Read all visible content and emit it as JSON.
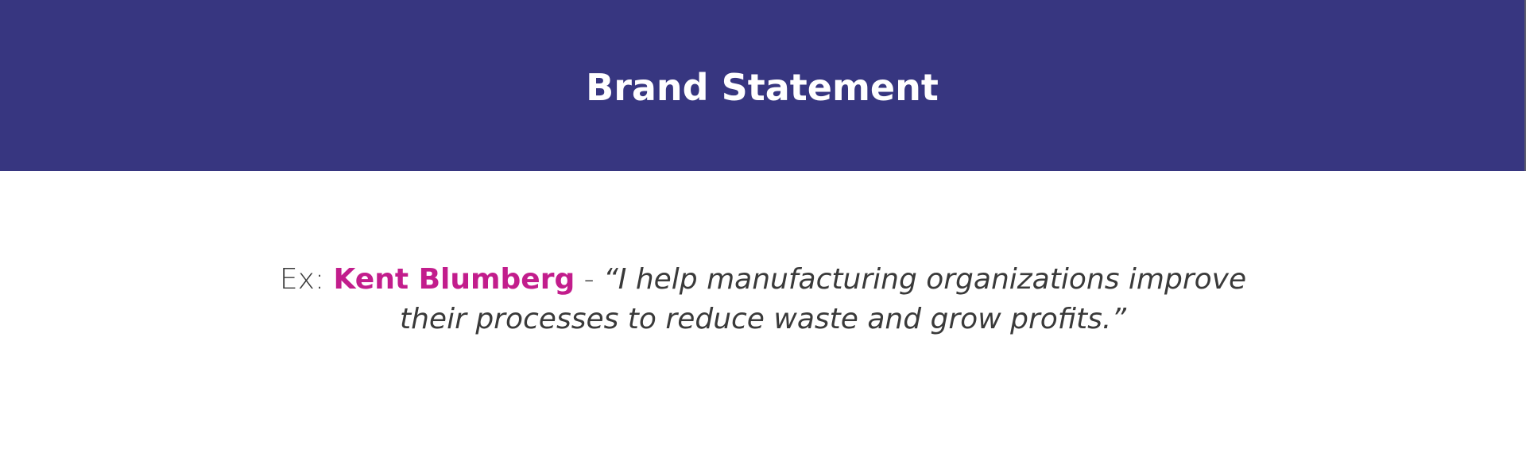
{
  "header": {
    "title": "Brand Statement"
  },
  "statement": {
    "prefix": "Ex:",
    "name": "Kent Blumberg",
    "separator": "-",
    "quote": "“I help manufacturing organizations improve their processes to reduce waste and grow profits.”"
  },
  "colors": {
    "header_background": "#373680",
    "header_text": "#ffffff",
    "name_accent": "#c21d8c",
    "body_text": "#3a3a3a",
    "page_background": "#ffffff"
  }
}
